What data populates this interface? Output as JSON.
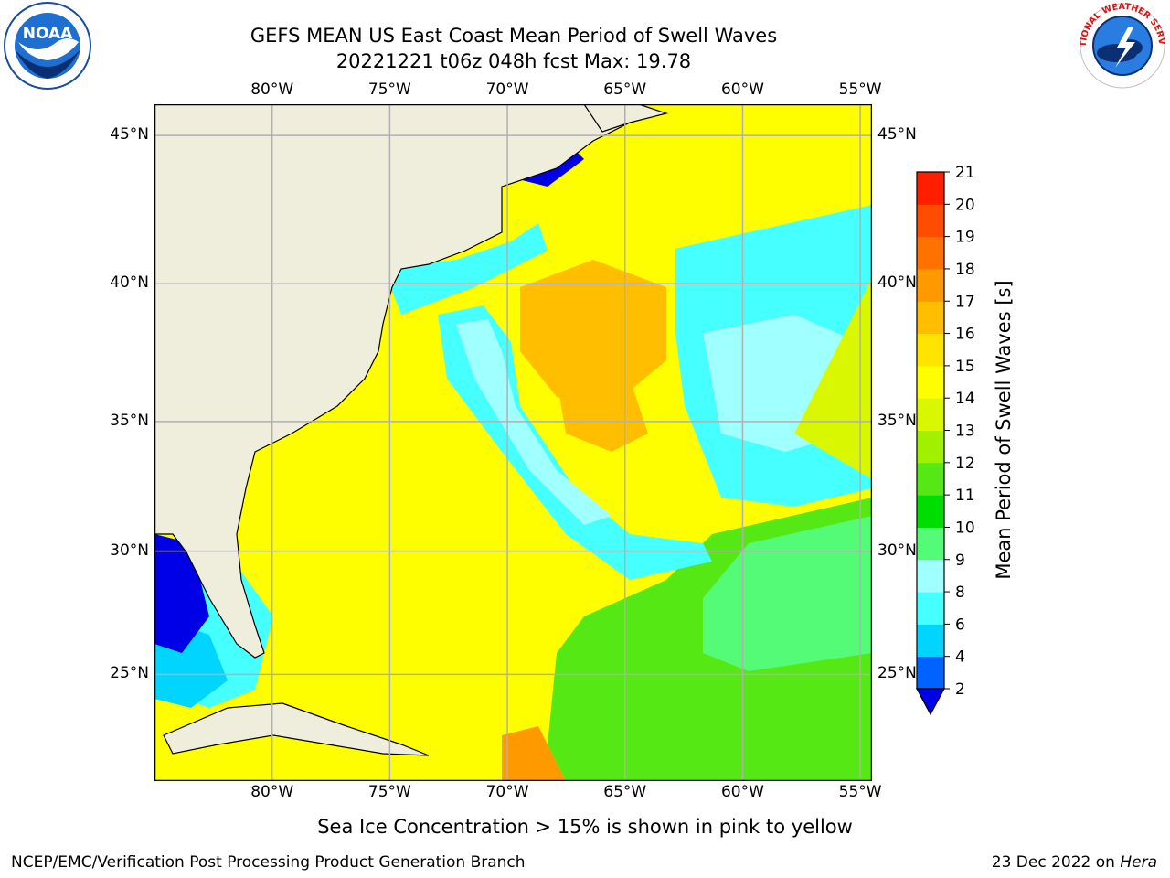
{
  "header": {
    "title_line1": "GEFS MEAN US East Coast Mean Period of Swell Waves",
    "title_line2": "20221221 t06z 048h fcst   Max: 19.78"
  },
  "logos": {
    "left": {
      "name": "noaa-logo",
      "text": "NOAA"
    },
    "right": {
      "name": "nws-logo",
      "text": "NATIONAL WEATHER SERVICE"
    }
  },
  "map": {
    "lon_ticks": [
      "80°W",
      "75°W",
      "70°W",
      "65°W",
      "60°W",
      "55°W"
    ],
    "lat_ticks": [
      "45°N",
      "40°N",
      "35°N",
      "30°N",
      "25°N"
    ],
    "lon_range": [
      -85,
      -54.5
    ],
    "lat_range": [
      20.5,
      46
    ],
    "grid": true,
    "colors": {
      "land": "#efeddc",
      "coast": "#000000",
      "grid": "#b0b0b0"
    }
  },
  "colorbar": {
    "label": "Mean Period of Swell Waves [s]",
    "ticks": [
      "2",
      "4",
      "6",
      "8",
      "9",
      "10",
      "11",
      "12",
      "13",
      "14",
      "15",
      "16",
      "17",
      "18",
      "19",
      "20",
      "21"
    ],
    "colors": [
      "#0063ff",
      "#00d5ff",
      "#46ffff",
      "#a0ffff",
      "#53fb77",
      "#00dd00",
      "#55e814",
      "#a0f000",
      "#d9f700",
      "#fefe00",
      "#ffe400",
      "#ffbe00",
      "#ff9900",
      "#ff7200",
      "#ff4d00",
      "#ff1f00"
    ],
    "under_color": "#0000e6",
    "extend": "min"
  },
  "notes": {
    "sea_ice": "Sea Ice Concentration > 15% is shown in pink to yellow"
  },
  "footer": {
    "left": "NCEP/EMC/Verification Post Processing Product Generation Branch",
    "right_prefix": "23 Dec 2022 on ",
    "right_machine": "Hera"
  }
}
